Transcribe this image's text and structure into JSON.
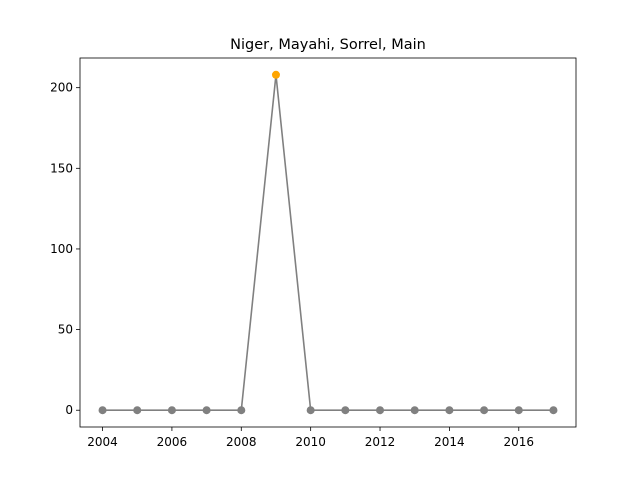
{
  "chart_data": {
    "type": "line",
    "title": "Niger, Mayahi, Sorrel, Main",
    "xlabel": "",
    "ylabel": "",
    "x": [
      2004,
      2005,
      2006,
      2007,
      2008,
      2009,
      2010,
      2011,
      2012,
      2013,
      2014,
      2015,
      2016,
      2017
    ],
    "series": [
      {
        "values": [
          0,
          0,
          0,
          0,
          0,
          208,
          0,
          0,
          0,
          0,
          0,
          0,
          0,
          0
        ],
        "color": "#808080"
      }
    ],
    "highlight": {
      "x": 2009,
      "y": 208,
      "color": "#ffa500"
    },
    "xlim": [
      2003.35,
      2017.65
    ],
    "ylim": [
      -10.4,
      218.4
    ],
    "xticks": [
      2004,
      2006,
      2008,
      2010,
      2012,
      2014,
      2016
    ],
    "yticks": [
      0,
      50,
      100,
      150,
      200
    ],
    "grid": false
  }
}
